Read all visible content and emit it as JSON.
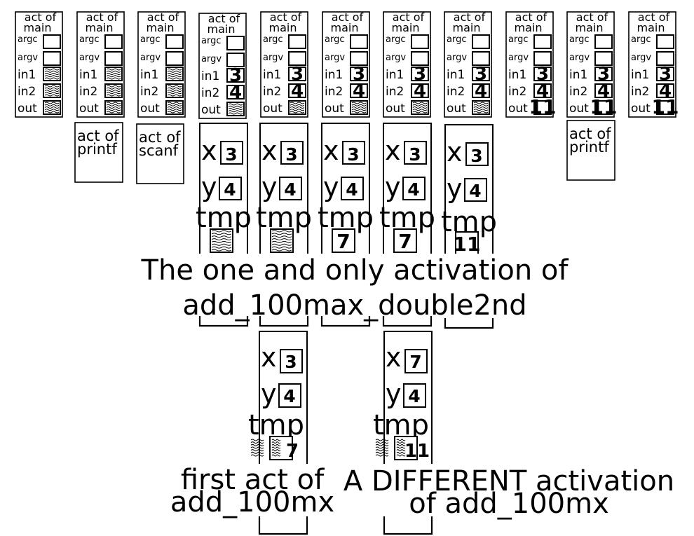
{
  "main_frames": [
    {
      "title1": "act of",
      "title2": "main",
      "argc": "argc",
      "argv": "argv",
      "in1": "in1",
      "in2": "in2",
      "out": "out",
      "in1_val": "",
      "in2_val": "",
      "out_val": ""
    },
    {
      "title1": "act of",
      "title2": "main",
      "argc": "argc",
      "argv": "argv",
      "in1": "in1",
      "in2": "in2",
      "out": "out",
      "in1_val": "",
      "in2_val": "",
      "out_val": ""
    },
    {
      "title1": "act of",
      "title2": "main",
      "argc": "argc",
      "argv": "argv",
      "in1": "in1",
      "in2": "in2",
      "out": "out",
      "in1_val": "",
      "in2_val": "",
      "out_val": ""
    },
    {
      "title1": "act of",
      "title2": "main",
      "argc": "argc",
      "argv": "argv",
      "in1": "in1",
      "in2": "in2",
      "out": "out",
      "in1_val": "3",
      "in2_val": "4",
      "out_val": ""
    },
    {
      "title1": "act of",
      "title2": "main",
      "argc": "argc",
      "argv": "argv",
      "in1": "in1",
      "in2": "in2",
      "out": "out",
      "in1_val": "3",
      "in2_val": "4",
      "out_val": ""
    },
    {
      "title1": "act of",
      "title2": "main",
      "argc": "argc",
      "argv": "argv",
      "in1": "in1",
      "in2": "in2",
      "out": "out",
      "in1_val": "3",
      "in2_val": "4",
      "out_val": ""
    },
    {
      "title1": "act of",
      "title2": "main",
      "argc": "argc",
      "argv": "argv",
      "in1": "in1",
      "in2": "in2",
      "out": "out",
      "in1_val": "3",
      "in2_val": "4",
      "out_val": ""
    },
    {
      "title1": "act of",
      "title2": "main",
      "argc": "argc",
      "argv": "argv",
      "in1": "in1",
      "in2": "in2",
      "out": "out",
      "in1_val": "3",
      "in2_val": "4",
      "out_val": ""
    },
    {
      "title1": "act of",
      "title2": "main",
      "argc": "argc",
      "argv": "argv",
      "in1": "in1",
      "in2": "in2",
      "out": "out",
      "in1_val": "3",
      "in2_val": "4",
      "out_val": "11"
    },
    {
      "title1": "act of",
      "title2": "main",
      "argc": "argc",
      "argv": "argv",
      "in1": "in1",
      "in2": "in2",
      "out": "out",
      "in1_val": "3",
      "in2_val": "4",
      "out_val": "11"
    },
    {
      "title1": "act of",
      "title2": "main",
      "argc": "argc",
      "argv": "argv",
      "in1": "in1",
      "in2": "in2",
      "out": "out",
      "in1_val": "3",
      "in2_val": "4",
      "out_val": "11"
    }
  ],
  "lib_frames": [
    {
      "line1": "act of",
      "line2": "printf"
    },
    {
      "line1": "act of",
      "line2": "scanf"
    },
    {
      "line1": "act of",
      "line2": "printf"
    }
  ],
  "add_frames": [
    {
      "x_label": "x",
      "x_val": "3",
      "y_label": "y",
      "y_val": "4",
      "tmp_label": "tmp",
      "tmp_val": ""
    },
    {
      "x_label": "x",
      "x_val": "3",
      "y_label": "y",
      "y_val": "4",
      "tmp_label": "tmp",
      "tmp_val": ""
    },
    {
      "x_label": "x",
      "x_val": "3",
      "y_label": "y",
      "y_val": "4",
      "tmp_label": "tmp",
      "tmp_val": "7"
    },
    {
      "x_label": "x",
      "x_val": "3",
      "y_label": "y",
      "y_val": "4",
      "tmp_label": "tmp",
      "tmp_val": "7"
    },
    {
      "x_label": "x",
      "x_val": "3",
      "y_label": "y",
      "y_val": "4",
      "tmp_label": "tmp",
      "tmp_val": "11"
    }
  ],
  "mx_frames": [
    {
      "x_label": "x",
      "x_val": "3",
      "y_label": "y",
      "y_val": "4",
      "tmp_label": "tmp",
      "tmp_val": "7"
    },
    {
      "x_label": "x",
      "x_val": "7",
      "y_label": "y",
      "y_val": "4",
      "tmp_label": "tmp",
      "tmp_val": "11"
    }
  ],
  "captions": {
    "activation_line1": "The one and only activation of",
    "activation_line2": "add_100max_double2nd",
    "first_line1": "first act of",
    "first_line2": "add_100mx",
    "different_line1": "A DIFFERENT activation",
    "different_line2": "of add_100mx"
  }
}
